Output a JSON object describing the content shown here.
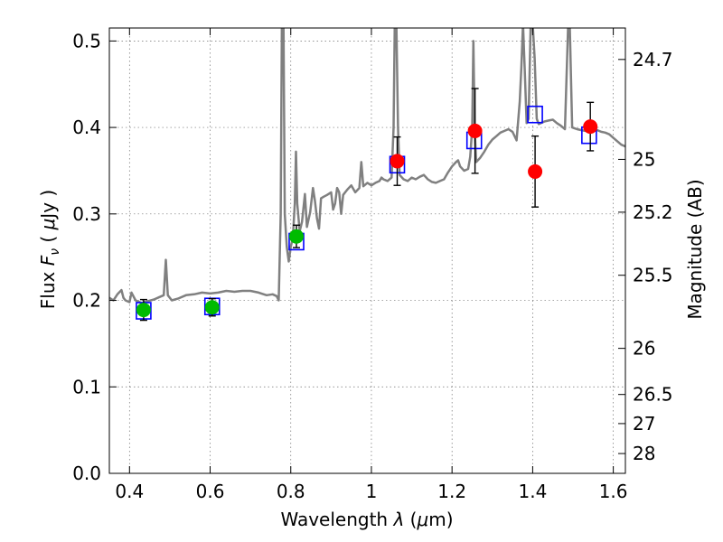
{
  "chart_data": {
    "type": "scatter",
    "title": "",
    "xlabel": {
      "prefix": "Wavelength ",
      "symbol": "λ",
      "unit_open": " (",
      "unit_mu": "μ",
      "unit_rest": "m)"
    },
    "ylabel": {
      "prefix": "Flux ",
      "symbol": "F",
      "sub": "ν",
      "unit_open": " ( ",
      "unit_mu": "μ",
      "unit_rest": "Jy )"
    },
    "y2label": "Magnitude (AB)",
    "xlim": [
      0.35,
      1.63
    ],
    "ylim": [
      0.0,
      0.515
    ],
    "grid": true,
    "xticks": [
      {
        "value": 0.4,
        "label": "0.4"
      },
      {
        "value": 0.6,
        "label": "0.6"
      },
      {
        "value": 0.8,
        "label": "0.8"
      },
      {
        "value": 1.0,
        "label": "1"
      },
      {
        "value": 1.2,
        "label": "1.2"
      },
      {
        "value": 1.4,
        "label": "1.4"
      },
      {
        "value": 1.6,
        "label": "1.6"
      }
    ],
    "yticks": [
      {
        "value": 0.0,
        "label": "0.0"
      },
      {
        "value": 0.1,
        "label": "0.1"
      },
      {
        "value": 0.2,
        "label": "0.2"
      },
      {
        "value": 0.3,
        "label": "0.3"
      },
      {
        "value": 0.4,
        "label": "0.4"
      },
      {
        "value": 0.5,
        "label": "0.5"
      }
    ],
    "y2ticks": [
      {
        "value": 24.7,
        "label": "24.7"
      },
      {
        "value": 25.0,
        "label": "25"
      },
      {
        "value": 25.2,
        "label": "25.2"
      },
      {
        "value": 25.5,
        "label": "25.5"
      },
      {
        "value": 26.0,
        "label": "26"
      },
      {
        "value": 26.5,
        "label": "26.5"
      },
      {
        "value": 27.0,
        "label": "27"
      },
      {
        "value": 28.0,
        "label": "28"
      }
    ],
    "colors": {
      "sed": "#808080",
      "model_box": "#0000ff",
      "green_points": "#00bb00",
      "red_points": "#ff0000",
      "errorbar": "#000000"
    },
    "series": [
      {
        "kind": "sed_line",
        "color": "#808080",
        "points": [
          [
            0.35,
            0.203
          ],
          [
            0.36,
            0.2
          ],
          [
            0.37,
            0.207
          ],
          [
            0.38,
            0.212
          ],
          [
            0.385,
            0.203
          ],
          [
            0.39,
            0.2
          ],
          [
            0.4,
            0.198
          ],
          [
            0.405,
            0.209
          ],
          [
            0.415,
            0.2
          ],
          [
            0.43,
            0.197
          ],
          [
            0.445,
            0.199
          ],
          [
            0.46,
            0.201
          ],
          [
            0.475,
            0.204
          ],
          [
            0.485,
            0.206
          ],
          [
            0.49,
            0.247
          ],
          [
            0.495,
            0.206
          ],
          [
            0.505,
            0.2
          ],
          [
            0.52,
            0.202
          ],
          [
            0.54,
            0.206
          ],
          [
            0.56,
            0.207
          ],
          [
            0.58,
            0.209
          ],
          [
            0.6,
            0.208
          ],
          [
            0.62,
            0.209
          ],
          [
            0.64,
            0.211
          ],
          [
            0.66,
            0.21
          ],
          [
            0.68,
            0.211
          ],
          [
            0.7,
            0.211
          ],
          [
            0.72,
            0.209
          ],
          [
            0.74,
            0.206
          ],
          [
            0.755,
            0.207
          ],
          [
            0.765,
            0.205
          ],
          [
            0.77,
            0.2
          ],
          [
            0.775,
            0.3
          ],
          [
            0.778,
            0.52
          ],
          [
            0.782,
            0.52
          ],
          [
            0.785,
            0.3
          ],
          [
            0.79,
            0.262
          ],
          [
            0.795,
            0.245
          ],
          [
            0.8,
            0.262
          ],
          [
            0.805,
            0.272
          ],
          [
            0.81,
            0.312
          ],
          [
            0.813,
            0.372
          ],
          [
            0.816,
            0.312
          ],
          [
            0.822,
            0.28
          ],
          [
            0.828,
            0.291
          ],
          [
            0.835,
            0.323
          ],
          [
            0.84,
            0.285
          ],
          [
            0.848,
            0.302
          ],
          [
            0.855,
            0.33
          ],
          [
            0.86,
            0.315
          ],
          [
            0.865,
            0.295
          ],
          [
            0.87,
            0.283
          ],
          [
            0.875,
            0.318
          ],
          [
            0.882,
            0.32
          ],
          [
            0.89,
            0.322
          ],
          [
            0.9,
            0.325
          ],
          [
            0.905,
            0.305
          ],
          [
            0.91,
            0.312
          ],
          [
            0.915,
            0.33
          ],
          [
            0.92,
            0.325
          ],
          [
            0.925,
            0.3
          ],
          [
            0.93,
            0.322
          ],
          [
            0.94,
            0.328
          ],
          [
            0.95,
            0.333
          ],
          [
            0.96,
            0.325
          ],
          [
            0.97,
            0.33
          ],
          [
            0.975,
            0.36
          ],
          [
            0.98,
            0.332
          ],
          [
            0.99,
            0.336
          ],
          [
            1.0,
            0.333
          ],
          [
            1.01,
            0.336
          ],
          [
            1.02,
            0.338
          ],
          [
            1.025,
            0.342
          ],
          [
            1.03,
            0.34
          ],
          [
            1.04,
            0.338
          ],
          [
            1.05,
            0.342
          ],
          [
            1.055,
            0.4
          ],
          [
            1.058,
            0.52
          ],
          [
            1.062,
            0.52
          ],
          [
            1.066,
            0.4
          ],
          [
            1.07,
            0.345
          ],
          [
            1.08,
            0.34
          ],
          [
            1.09,
            0.338
          ],
          [
            1.1,
            0.342
          ],
          [
            1.11,
            0.34
          ],
          [
            1.12,
            0.343
          ],
          [
            1.13,
            0.345
          ],
          [
            1.14,
            0.34
          ],
          [
            1.15,
            0.337
          ],
          [
            1.16,
            0.336
          ],
          [
            1.17,
            0.338
          ],
          [
            1.18,
            0.34
          ],
          [
            1.19,
            0.348
          ],
          [
            1.2,
            0.355
          ],
          [
            1.21,
            0.36
          ],
          [
            1.215,
            0.362
          ],
          [
            1.22,
            0.355
          ],
          [
            1.23,
            0.35
          ],
          [
            1.24,
            0.352
          ],
          [
            1.245,
            0.366
          ],
          [
            1.25,
            0.4
          ],
          [
            1.253,
            0.5
          ],
          [
            1.256,
            0.4
          ],
          [
            1.26,
            0.36
          ],
          [
            1.27,
            0.365
          ],
          [
            1.28,
            0.372
          ],
          [
            1.29,
            0.38
          ],
          [
            1.3,
            0.386
          ],
          [
            1.31,
            0.39
          ],
          [
            1.32,
            0.394
          ],
          [
            1.33,
            0.396
          ],
          [
            1.34,
            0.398
          ],
          [
            1.35,
            0.395
          ],
          [
            1.36,
            0.385
          ],
          [
            1.368,
            0.43
          ],
          [
            1.372,
            0.47
          ],
          [
            1.376,
            0.52
          ],
          [
            1.38,
            0.47
          ],
          [
            1.385,
            0.405
          ],
          [
            1.39,
            0.41
          ],
          [
            1.395,
            0.52
          ],
          [
            1.4,
            0.52
          ],
          [
            1.405,
            0.48
          ],
          [
            1.41,
            0.41
          ],
          [
            1.415,
            0.404
          ],
          [
            1.42,
            0.405
          ],
          [
            1.43,
            0.407
          ],
          [
            1.44,
            0.408
          ],
          [
            1.45,
            0.409
          ],
          [
            1.46,
            0.405
          ],
          [
            1.47,
            0.402
          ],
          [
            1.48,
            0.398
          ],
          [
            1.488,
            0.52
          ],
          [
            1.492,
            0.52
          ],
          [
            1.498,
            0.4
          ],
          [
            1.51,
            0.398
          ],
          [
            1.52,
            0.397
          ],
          [
            1.53,
            0.396
          ],
          [
            1.54,
            0.398
          ],
          [
            1.55,
            0.399
          ],
          [
            1.56,
            0.397
          ],
          [
            1.57,
            0.395
          ],
          [
            1.58,
            0.394
          ],
          [
            1.59,
            0.392
          ],
          [
            1.6,
            0.388
          ],
          [
            1.61,
            0.384
          ],
          [
            1.62,
            0.38
          ],
          [
            1.63,
            0.378
          ]
        ]
      },
      {
        "kind": "model_boxes",
        "color": "#0000ff",
        "points": [
          {
            "x": 0.435,
            "y": 0.188
          },
          {
            "x": 0.605,
            "y": 0.193
          },
          {
            "x": 0.814,
            "y": 0.268
          },
          {
            "x": 1.064,
            "y": 0.357
          },
          {
            "x": 1.255,
            "y": 0.385
          },
          {
            "x": 1.406,
            "y": 0.415
          },
          {
            "x": 1.54,
            "y": 0.391
          }
        ]
      },
      {
        "kind": "points_green",
        "color": "#00bb00",
        "points": [
          {
            "x": 0.435,
            "y": 0.189,
            "yerr": 0.012
          },
          {
            "x": 0.605,
            "y": 0.192,
            "yerr": 0.01
          },
          {
            "x": 0.814,
            "y": 0.274,
            "yerr": 0.013
          }
        ]
      },
      {
        "kind": "points_red",
        "color": "#ff0000",
        "points": [
          {
            "x": 1.064,
            "y": 0.361,
            "yerr": 0.028
          },
          {
            "x": 1.257,
            "y": 0.396,
            "yerr": 0.049
          },
          {
            "x": 1.406,
            "y": 0.349,
            "yerr": 0.041
          },
          {
            "x": 1.543,
            "y": 0.401,
            "yerr": 0.028
          }
        ]
      }
    ]
  }
}
